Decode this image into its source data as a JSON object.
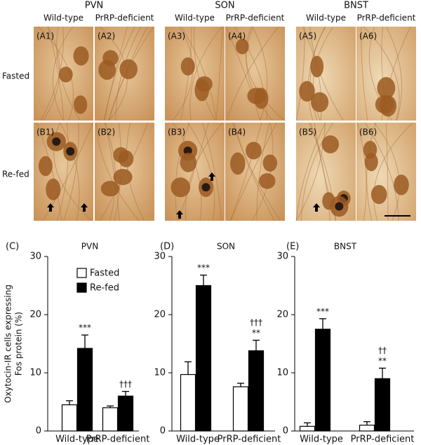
{
  "micrographs": {
    "regions": [
      {
        "name": "PVN",
        "columns": [
          "Wild-type",
          "PrRP-deficient"
        ]
      },
      {
        "name": "SON",
        "columns": [
          "Wild-type",
          "PrRP-deficient"
        ]
      },
      {
        "name": "BNST",
        "columns": [
          "Wild-type",
          "PrRP-deficient"
        ]
      }
    ],
    "rows": [
      "Fasted",
      "Re-fed"
    ],
    "panels": [
      [
        "(A1)",
        "(A2)",
        "(A3)",
        "(A4)",
        "(A5)",
        "(A6)"
      ],
      [
        "(B1)",
        "(B2)",
        "(B3)",
        "(B4)",
        "(B5)",
        "(B6)"
      ]
    ]
  },
  "chart_data": [
    {
      "type": "bar",
      "panel": "(C)",
      "title": "PVN",
      "ylabel": [
        "Oxytocin-IR cells expressing",
        "Fos protein (%)"
      ],
      "categories": [
        "Wild-type",
        "PrRP-deficient"
      ],
      "series": [
        {
          "name": "Fasted",
          "color": "#ffffff",
          "values": [
            4.5,
            4.0
          ],
          "errors": [
            0.7,
            0.3
          ]
        },
        {
          "name": "Re-fed",
          "color": "#000000",
          "values": [
            14.2,
            6.0
          ],
          "errors": [
            2.3,
            0.8
          ],
          "stars": [
            "***",
            null
          ],
          "daggers": [
            null,
            "†††"
          ]
        }
      ],
      "ylim": [
        0,
        30
      ],
      "yticks": [
        0,
        10,
        20,
        30
      ]
    },
    {
      "type": "bar",
      "panel": "(D)",
      "title": "SON",
      "categories": [
        "Wild-type",
        "PrRP-deficient"
      ],
      "series": [
        {
          "color": "#ffffff",
          "values": [
            9.7,
            7.6
          ],
          "errors": [
            2.2,
            0.6
          ]
        },
        {
          "color": "#000000",
          "values": [
            25.0,
            13.8
          ],
          "errors": [
            1.8,
            1.8
          ],
          "stars": [
            "***",
            "**"
          ],
          "daggers": [
            null,
            "†††"
          ]
        }
      ],
      "ylim": [
        0,
        30
      ],
      "yticks": [
        0,
        10,
        20,
        30
      ]
    },
    {
      "type": "bar",
      "panel": "(E)",
      "title": "BNST",
      "categories": [
        "Wild-type",
        "PrRP-deficient"
      ],
      "series": [
        {
          "color": "#ffffff",
          "values": [
            0.8,
            1.0
          ],
          "errors": [
            0.6,
            0.6
          ]
        },
        {
          "color": "#000000",
          "values": [
            17.5,
            9.0
          ],
          "errors": [
            1.8,
            1.8
          ],
          "stars": [
            "***",
            "**"
          ],
          "daggers": [
            null,
            "††"
          ]
        }
      ],
      "ylim": [
        0,
        30
      ],
      "yticks": [
        0,
        10,
        20,
        30
      ]
    }
  ]
}
